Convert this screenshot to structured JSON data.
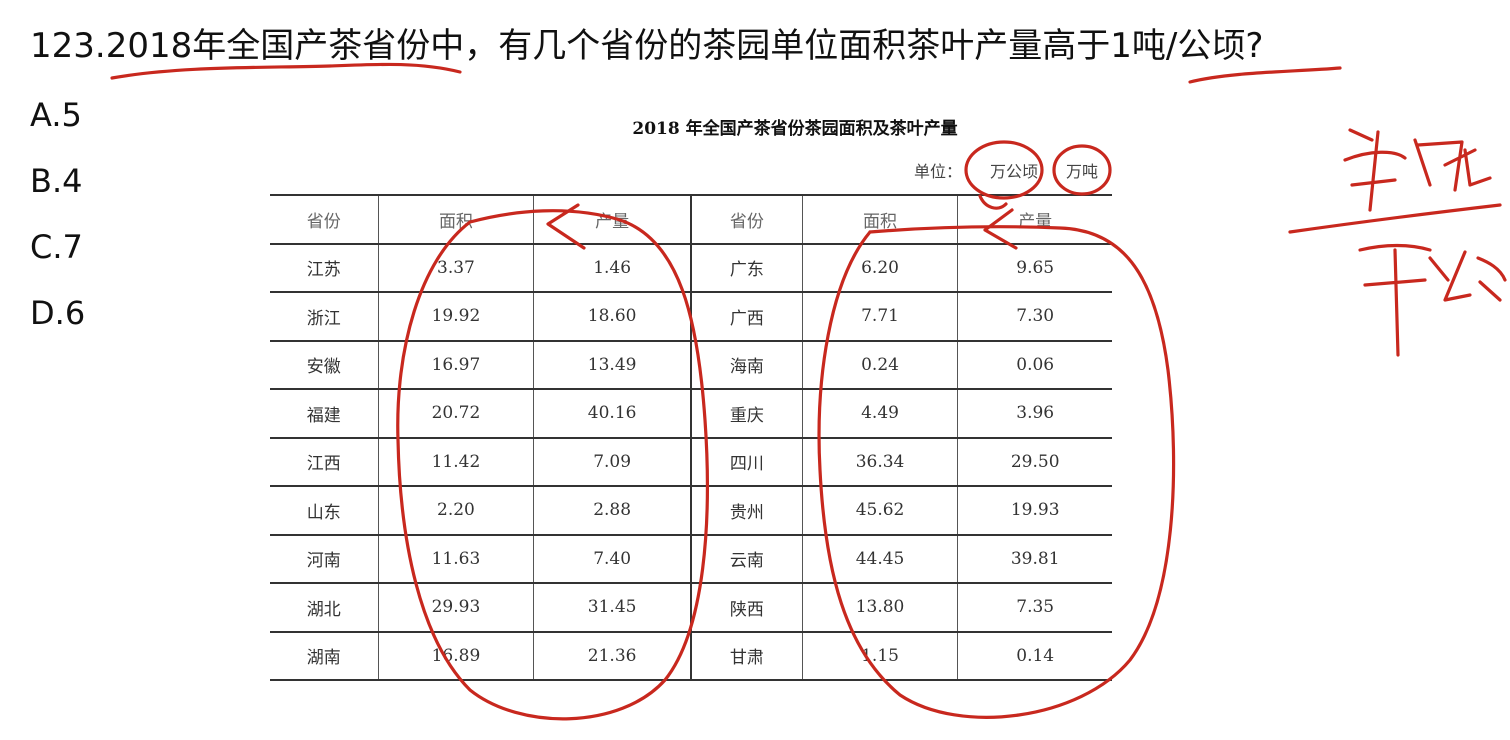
{
  "question": "123.2018年全国产茶省份中，有几个省份的茶园单位面积茶叶产量高于1吨/公顷?",
  "options": [
    "A.5",
    "B.4",
    "C.7",
    "D.6"
  ],
  "table": {
    "title": "2018 年全国产茶省份茶园面积及茶叶产量",
    "unit_label": "单位：",
    "unit_area": "万公顷",
    "unit_output": "万吨",
    "headers": [
      "省份",
      "面积",
      "产量",
      "省份",
      "面积",
      "产量"
    ],
    "rows": [
      [
        "江苏",
        "3.37",
        "1.46",
        "广东",
        "6.20",
        "9.65"
      ],
      [
        "浙江",
        "19.92",
        "18.60",
        "广西",
        "7.71",
        "7.30"
      ],
      [
        "安徽",
        "16.97",
        "13.49",
        "海南",
        "0.24",
        "0.06"
      ],
      [
        "福建",
        "20.72",
        "40.16",
        "重庆",
        "4.49",
        "3.96"
      ],
      [
        "江西",
        "11.42",
        "7.09",
        "四川",
        "36.34",
        "29.50"
      ],
      [
        "山东",
        "2.20",
        "2.88",
        "贵州",
        "45.62",
        "19.93"
      ],
      [
        "河南",
        "11.63",
        "7.40",
        "云南",
        "44.45",
        "39.81"
      ],
      [
        "湖北",
        "29.93",
        "31.45",
        "陕西",
        "13.80",
        "7.35"
      ],
      [
        "湖南",
        "16.89",
        "21.36",
        "甘肃",
        "1.15",
        "0.14"
      ]
    ]
  },
  "annotation": {
    "ink_color": "#c8281e",
    "handwriting_top": "万吨",
    "handwriting_bottom": "万公顷"
  }
}
